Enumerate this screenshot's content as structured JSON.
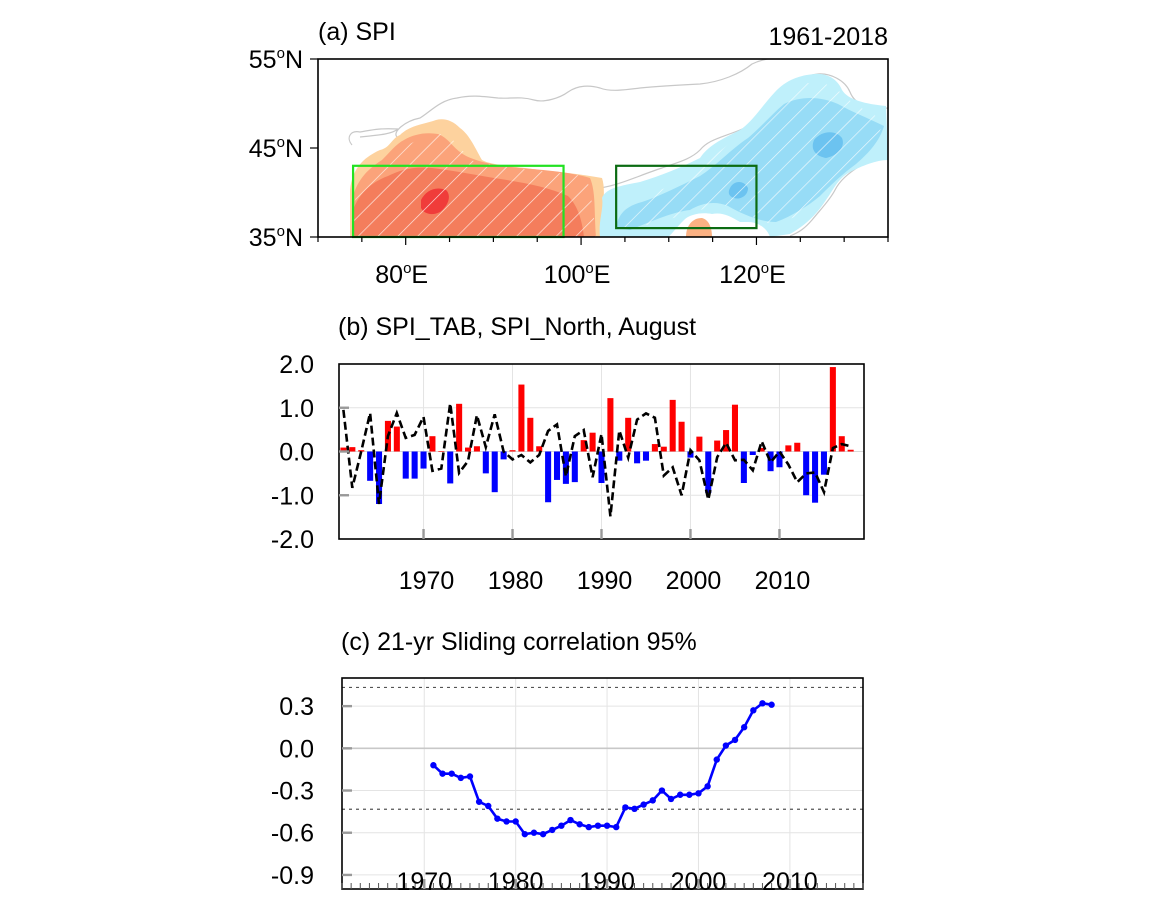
{
  "chart_data": [
    {
      "panel": "a",
      "type": "heatmap",
      "title": "(a) SPI",
      "subtitle": "1961-2018",
      "description": "Map of SPI trend/anomaly over northern China; warm colors (positive) over Tarim basin in the west, cool colors (negative) over northern/northeastern China; hatching marks significant areas",
      "xlim": [
        70,
        135
      ],
      "ylim": [
        35,
        55
      ],
      "x_ticks": [
        80,
        100,
        120
      ],
      "x_tick_labels": [
        "80",
        "100",
        "120"
      ],
      "x_tick_suffix": "E",
      "y_ticks": [
        35,
        45,
        55
      ],
      "y_tick_labels": [
        "35",
        "45",
        "55"
      ],
      "y_tick_suffix": "N",
      "degree_symbol": "o",
      "regions": [
        {
          "name": "TAB",
          "lon": [
            74,
            98
          ],
          "lat": [
            35,
            43
          ],
          "color": "#22e222"
        },
        {
          "name": "North",
          "lon": [
            104,
            120
          ],
          "lat": [
            36,
            43
          ],
          "color": "#0b6b12"
        }
      ],
      "palette": {
        "strong_positive": "#f03c3a",
        "positive": "#f47d5c",
        "moderate_positive": "#fba37a",
        "weak_positive": "#fdd29e",
        "weak_negative": "#bff0fb",
        "negative": "#97dcf6",
        "strong_negative": "#6cc3f0"
      }
    },
    {
      "panel": "b",
      "type": "bar",
      "title": "(b) SPI_TAB, SPI_North, August",
      "xlim": [
        1960.5,
        2019.5
      ],
      "ylim": [
        -2.0,
        2.0
      ],
      "x_ticks": [
        1970,
        1980,
        1990,
        2000,
        2010
      ],
      "x_tick_labels": [
        "1970",
        "1980",
        "1990",
        "2000",
        "2010"
      ],
      "y_ticks": [
        2.0,
        1.0,
        0.0,
        -1.0,
        -2.0
      ],
      "y_tick_labels": [
        "2.0",
        "1.0",
        "0.0",
        "-1.0",
        "-2.0"
      ],
      "grid": true,
      "x": [
        1961,
        1962,
        1963,
        1964,
        1965,
        1966,
        1967,
        1968,
        1969,
        1970,
        1971,
        1972,
        1973,
        1974,
        1975,
        1976,
        1977,
        1978,
        1979,
        1980,
        1981,
        1982,
        1983,
        1984,
        1985,
        1986,
        1987,
        1988,
        1989,
        1990,
        1991,
        1992,
        1993,
        1994,
        1995,
        1996,
        1997,
        1998,
        1999,
        2000,
        2001,
        2002,
        2003,
        2004,
        2005,
        2006,
        2007,
        2008,
        2009,
        2010,
        2011,
        2012,
        2013,
        2014,
        2015,
        2016,
        2017,
        2018
      ],
      "series": [
        {
          "name": "SPI_TAB",
          "kind": "bar",
          "positive_color": "#ff0000",
          "negative_color": "#0000ff",
          "values": [
            0.09,
            0.1,
            0.03,
            -0.67,
            -1.2,
            0.7,
            0.57,
            -0.62,
            -0.62,
            -0.39,
            0.35,
            0.01,
            -0.73,
            1.09,
            0.09,
            0.12,
            -0.5,
            -0.93,
            -0.18,
            0.03,
            1.53,
            0.77,
            0.12,
            -1.16,
            -0.65,
            -0.74,
            -0.7,
            0.26,
            0.43,
            -0.72,
            1.22,
            -0.21,
            0.77,
            -0.27,
            -0.21,
            0.17,
            0.11,
            1.18,
            0.68,
            -0.14,
            0.34,
            -0.95,
            0.25,
            0.49,
            1.07,
            -0.72,
            -0.08,
            0.08,
            -0.45,
            -0.36,
            0.14,
            0.2,
            -1.0,
            -1.17,
            -0.53,
            1.93,
            0.35,
            0.04
          ]
        },
        {
          "name": "SPI_North",
          "kind": "line",
          "color": "#000000",
          "dash": "dashed",
          "values": [
            0.95,
            -0.83,
            0.0,
            0.88,
            -1.2,
            0.35,
            0.88,
            0.31,
            0.38,
            0.79,
            -0.44,
            -0.39,
            1.1,
            -0.49,
            -0.22,
            0.83,
            0.1,
            0.85,
            0.0,
            -0.18,
            -0.08,
            -0.25,
            -0.08,
            0.47,
            0.62,
            -0.57,
            0.35,
            0.49,
            -0.59,
            0.4,
            -1.48,
            0.48,
            -0.14,
            0.73,
            0.87,
            0.77,
            -0.55,
            -0.36,
            -1.0,
            0.03,
            -0.2,
            -1.1,
            -0.13,
            0.2,
            -0.2,
            -0.19,
            -0.43,
            0.23,
            -0.25,
            0.0,
            -0.3,
            -0.7,
            -0.5,
            -0.48,
            -0.93,
            0.08,
            0.17,
            0.12
          ]
        }
      ]
    },
    {
      "panel": "c",
      "type": "line",
      "title": "(c) 21-yr Sliding correlation 95%",
      "xlim": [
        1961,
        2018
      ],
      "ylim": [
        -1.0,
        0.5
      ],
      "x_ticks": [
        1970,
        1980,
        1990,
        2000,
        2010
      ],
      "x_tick_labels": [
        "1970",
        "1980",
        "1990",
        "2000",
        "2010"
      ],
      "y_ticks": [
        0.3,
        0.0,
        -0.3,
        -0.6,
        -0.9
      ],
      "y_tick_labels": [
        "0.3",
        "0.0",
        "-0.3",
        "-0.6",
        "-0.9"
      ],
      "grid": true,
      "significance_lines": [
        0.433,
        -0.433
      ],
      "x": [
        1971,
        1972,
        1973,
        1974,
        1975,
        1976,
        1977,
        1978,
        1979,
        1980,
        1981,
        1982,
        1983,
        1984,
        1985,
        1986,
        1987,
        1988,
        1989,
        1990,
        1991,
        1992,
        1993,
        1994,
        1995,
        1996,
        1997,
        1998,
        1999,
        2000,
        2001,
        2002,
        2003,
        2004,
        2005,
        2006,
        2007,
        2008
      ],
      "series": [
        {
          "name": "21-yr sliding correlation",
          "color": "#0000ff",
          "marker": "dot",
          "values": [
            -0.12,
            -0.18,
            -0.18,
            -0.21,
            -0.2,
            -0.38,
            -0.41,
            -0.5,
            -0.52,
            -0.52,
            -0.61,
            -0.6,
            -0.61,
            -0.58,
            -0.55,
            -0.51,
            -0.54,
            -0.56,
            -0.55,
            -0.55,
            -0.56,
            -0.42,
            -0.43,
            -0.4,
            -0.37,
            -0.3,
            -0.36,
            -0.33,
            -0.33,
            -0.32,
            -0.27,
            -0.08,
            0.02,
            0.06,
            0.15,
            0.27,
            0.32,
            0.31
          ]
        }
      ]
    }
  ]
}
